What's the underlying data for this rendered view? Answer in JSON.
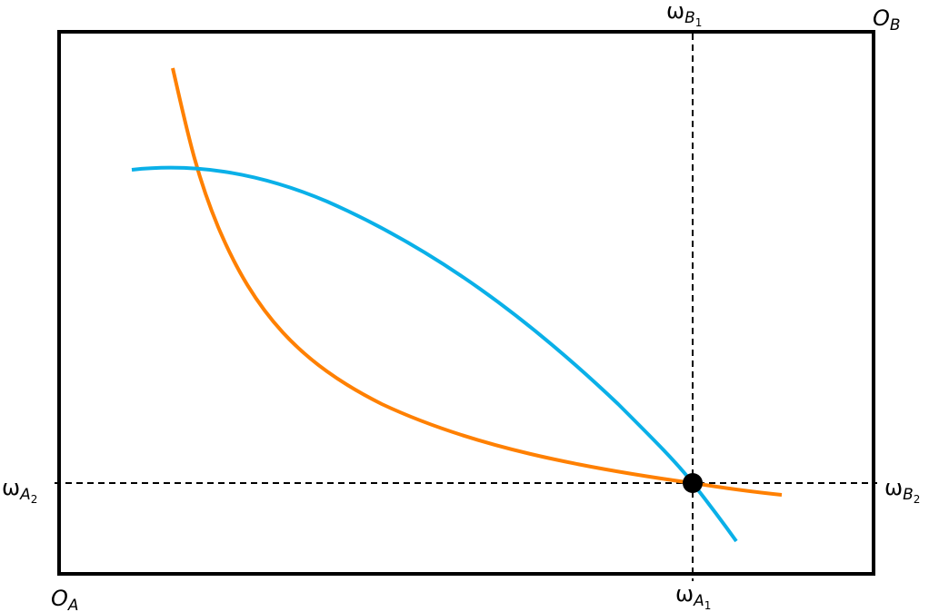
{
  "labels": {
    "origin_a": {
      "symbol": "O",
      "sub": "A"
    },
    "origin_b": {
      "symbol": "O",
      "sub": "B"
    },
    "omega_b1": {
      "symbol": "ω",
      "sub": "B",
      "subsub": "1"
    },
    "omega_a2": {
      "symbol": "ω",
      "sub": "A",
      "subsub": "2"
    },
    "omega_b2": {
      "symbol": "ω",
      "sub": "B",
      "subsub": "2"
    },
    "omega_a1": {
      "symbol": "ω",
      "sub": "A",
      "subsub": "1"
    }
  }
}
